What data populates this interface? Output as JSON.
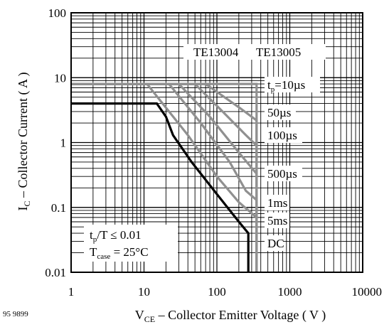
{
  "chart_data": {
    "type": "line",
    "xscale": "log",
    "yscale": "log",
    "xlim": [
      1,
      10000
    ],
    "ylim": [
      0.01,
      100
    ],
    "grid": true,
    "xlabel": {
      "main": "V",
      "sub": "CE",
      "rest": " – Collector Emitter Voltage ( V )"
    },
    "ylabel": {
      "main": "I",
      "sub": "C",
      "rest": " – Collector Current ( A )"
    },
    "x_ticks": [
      {
        "value": 1,
        "label": "1"
      },
      {
        "value": 10,
        "label": "10"
      },
      {
        "value": 100,
        "label": "100"
      },
      {
        "value": 1000,
        "label": "1000"
      },
      {
        "value": 10000,
        "label": "10000"
      }
    ],
    "y_ticks": [
      {
        "value": 100,
        "label": "100"
      },
      {
        "value": 10,
        "label": "10"
      },
      {
        "value": 1,
        "label": "1"
      },
      {
        "value": 0.1,
        "label": "0.1"
      },
      {
        "value": 0.01,
        "label": "0.01"
      }
    ],
    "device_labels": [
      "TE13004",
      "TE13005"
    ],
    "series": [
      {
        "label": {
          "pre": "t",
          "sub": "p",
          "post": "=10µs"
        },
        "color": "#909090",
        "points": [
          [
            1,
            8
          ],
          [
            350,
            8
          ],
          [
            350,
            0.01
          ]
        ]
      },
      {
        "label": {
          "pre": "",
          "sub": "",
          "post": "50µs"
        },
        "color": "#909090",
        "points": [
          [
            1,
            8
          ],
          [
            70,
            8
          ],
          [
            200,
            3.5
          ],
          [
            350,
            2.2
          ],
          [
            350,
            0.01
          ]
        ]
      },
      {
        "label": {
          "pre": "",
          "sub": "",
          "post": "100µs"
        },
        "color": "#909090",
        "points": [
          [
            1,
            8
          ],
          [
            50,
            8
          ],
          [
            120,
            3
          ],
          [
            250,
            1.3
          ],
          [
            350,
            0.9
          ],
          [
            350,
            0.01
          ]
        ]
      },
      {
        "label": {
          "pre": "",
          "sub": "",
          "post": "500µs"
        },
        "color": "#909090",
        "points": [
          [
            1,
            8
          ],
          [
            30,
            8
          ],
          [
            80,
            2.5
          ],
          [
            200,
            0.7
          ],
          [
            350,
            0.33
          ],
          [
            350,
            0.01
          ]
        ]
      },
      {
        "label": {
          "pre": "",
          "sub": "",
          "post": "1ms"
        },
        "color": "#909090",
        "points": [
          [
            1,
            8
          ],
          [
            22,
            8
          ],
          [
            60,
            2
          ],
          [
            150,
            0.5
          ],
          [
            250,
            0.18
          ],
          [
            350,
            0.13
          ],
          [
            350,
            0.01
          ]
        ]
      },
      {
        "label": {
          "pre": "",
          "sub": "",
          "post": "5ms"
        },
        "color": "#909090",
        "points": [
          [
            1,
            8
          ],
          [
            11,
            8
          ],
          [
            40,
            1.3
          ],
          [
            100,
            0.3
          ],
          [
            200,
            0.12
          ],
          [
            350,
            0.07
          ],
          [
            350,
            0.01
          ]
        ]
      },
      {
        "label": {
          "pre": "",
          "sub": "",
          "post": "DC"
        },
        "color": "#000000",
        "points": [
          [
            1,
            4
          ],
          [
            15,
            4
          ],
          [
            20,
            2.5
          ],
          [
            25,
            1.3
          ],
          [
            45,
            0.5
          ],
          [
            100,
            0.16
          ],
          [
            200,
            0.06
          ],
          [
            270,
            0.04
          ],
          [
            270,
            0.01
          ]
        ]
      }
    ],
    "annotation": {
      "line1": {
        "pre": "t",
        "sub": "p",
        "post": "/T ≤ 0.01"
      },
      "line2": {
        "pre": "T",
        "sub": "case",
        "post": " = 25°C"
      }
    }
  },
  "figure_code": "95 9899"
}
